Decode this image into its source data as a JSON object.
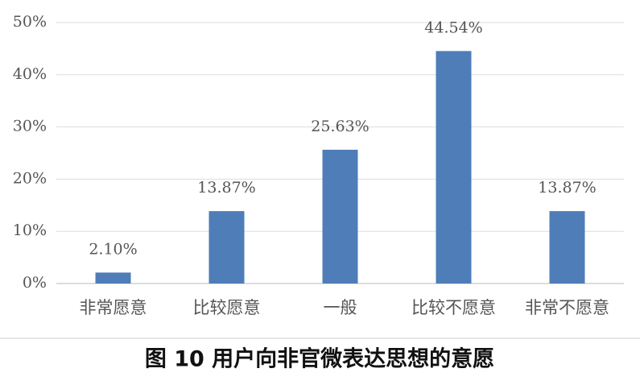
{
  "chart_data": {
    "type": "bar",
    "caption": "图 10 用户向非官微表达思想的意愿",
    "categories": [
      "非常愿意",
      "比较愿意",
      "一般",
      "比较不愿意",
      "非常不愿意"
    ],
    "values": [
      2.1,
      13.87,
      25.63,
      44.54,
      13.87
    ],
    "value_labels": [
      "2.10%",
      "13.87%",
      "25.63%",
      "44.54%",
      "13.87%"
    ],
    "color": "#4e7db8",
    "ylim": [
      0,
      50
    ],
    "yticks": [
      {
        "value": 0,
        "label": "0%"
      },
      {
        "value": 10,
        "label": "10%"
      },
      {
        "value": 20,
        "label": "20%"
      },
      {
        "value": 30,
        "label": "30%"
      },
      {
        "value": 40,
        "label": "40%"
      },
      {
        "value": 50,
        "label": "50%"
      }
    ],
    "grid": true
  }
}
